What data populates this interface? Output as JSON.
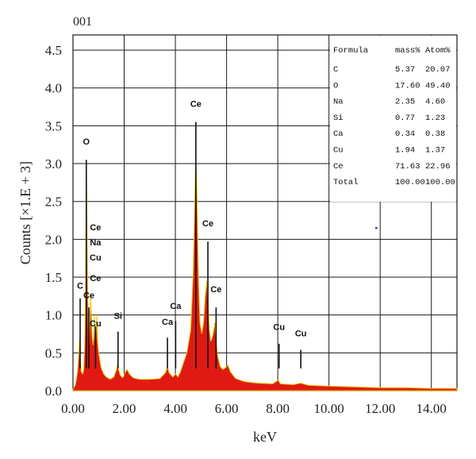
{
  "chart_data": {
    "type": "area",
    "corner_label": "001",
    "xlabel": "keV",
    "ylabel": "Counts [×1.E + 3]",
    "xlim": [
      0,
      15
    ],
    "ylim": [
      0,
      4.7
    ],
    "grid": true,
    "x_ticks": [
      0,
      2,
      4,
      6,
      8,
      10,
      12,
      14
    ],
    "x_tick_labels": [
      "0.00",
      "2.00",
      "4.00",
      "6.00",
      "8.00",
      "10.00",
      "12.00",
      "14.00"
    ],
    "y_ticks": [
      0,
      0.5,
      1,
      1.5,
      2,
      2.5,
      3,
      3.5,
      4,
      4.5
    ],
    "y_tick_labels": [
      "0.0",
      "0.5",
      "1.0",
      "1.5",
      "2.0",
      "2.5",
      "3.0",
      "3.5",
      "4.0",
      "4.5"
    ],
    "colors": {
      "spectrum": "#e01a12",
      "spectrum_edge": "#e8c400",
      "grid": "#1a1a1a"
    },
    "spectrum": [
      [
        0.0,
        0.02
      ],
      [
        0.1,
        0.08
      ],
      [
        0.18,
        0.25
      ],
      [
        0.22,
        0.45
      ],
      [
        0.26,
        0.7
      ],
      [
        0.28,
        0.45
      ],
      [
        0.32,
        0.25
      ],
      [
        0.38,
        0.22
      ],
      [
        0.42,
        0.28
      ],
      [
        0.46,
        0.6
      ],
      [
        0.5,
        1.4
      ],
      [
        0.52,
        2.9
      ],
      [
        0.54,
        2.55
      ],
      [
        0.57,
        1.4
      ],
      [
        0.6,
        0.85
      ],
      [
        0.63,
        0.6
      ],
      [
        0.66,
        0.9
      ],
      [
        0.69,
        1.25
      ],
      [
        0.72,
        0.95
      ],
      [
        0.75,
        0.7
      ],
      [
        0.78,
        0.6
      ],
      [
        0.81,
        0.7
      ],
      [
        0.84,
        1.0
      ],
      [
        0.87,
        0.6
      ],
      [
        0.9,
        0.72
      ],
      [
        0.93,
        1.0
      ],
      [
        0.96,
        0.65
      ],
      [
        1.0,
        0.5
      ],
      [
        1.05,
        0.4
      ],
      [
        1.1,
        0.3
      ],
      [
        1.2,
        0.22
      ],
      [
        1.3,
        0.18
      ],
      [
        1.45,
        0.15
      ],
      [
        1.6,
        0.18
      ],
      [
        1.7,
        0.28
      ],
      [
        1.74,
        0.35
      ],
      [
        1.78,
        0.28
      ],
      [
        1.85,
        0.2
      ],
      [
        1.95,
        0.17
      ],
      [
        2.05,
        0.25
      ],
      [
        2.12,
        0.28
      ],
      [
        2.2,
        0.22
      ],
      [
        2.35,
        0.17
      ],
      [
        2.6,
        0.15
      ],
      [
        3.0,
        0.15
      ],
      [
        3.4,
        0.16
      ],
      [
        3.62,
        0.24
      ],
      [
        3.69,
        0.32
      ],
      [
        3.75,
        0.24
      ],
      [
        3.9,
        0.18
      ],
      [
        4.01,
        0.22
      ],
      [
        4.1,
        0.18
      ],
      [
        4.2,
        0.25
      ],
      [
        4.3,
        0.35
      ],
      [
        4.45,
        0.5
      ],
      [
        4.6,
        0.8
      ],
      [
        4.7,
        1.6
      ],
      [
        4.76,
        2.6
      ],
      [
        4.8,
        3.08
      ],
      [
        4.84,
        2.6
      ],
      [
        4.9,
        1.5
      ],
      [
        4.96,
        0.9
      ],
      [
        5.03,
        0.75
      ],
      [
        5.1,
        0.9
      ],
      [
        5.17,
        1.25
      ],
      [
        5.22,
        1.45
      ],
      [
        5.27,
        1.2
      ],
      [
        5.33,
        0.8
      ],
      [
        5.38,
        0.65
      ],
      [
        5.44,
        0.7
      ],
      [
        5.49,
        0.78
      ],
      [
        5.54,
        0.9
      ],
      [
        5.59,
        0.65
      ],
      [
        5.66,
        0.45
      ],
      [
        5.75,
        0.32
      ],
      [
        5.85,
        0.28
      ],
      [
        5.95,
        0.3
      ],
      [
        6.05,
        0.34
      ],
      [
        6.15,
        0.25
      ],
      [
        6.35,
        0.16
      ],
      [
        6.7,
        0.12
      ],
      [
        7.2,
        0.1
      ],
      [
        7.8,
        0.09
      ],
      [
        8.02,
        0.14
      ],
      [
        8.1,
        0.09
      ],
      [
        8.6,
        0.08
      ],
      [
        8.9,
        0.1
      ],
      [
        9.2,
        0.07
      ],
      [
        10.0,
        0.06
      ],
      [
        11.0,
        0.05
      ],
      [
        12.0,
        0.04
      ],
      [
        13.0,
        0.04
      ],
      [
        14.0,
        0.03
      ],
      [
        15.0,
        0.03
      ]
    ],
    "peak_labels": [
      {
        "text": "O",
        "x": 0.52,
        "y": 3.25,
        "line": [
          3.05,
          0.0
        ]
      },
      {
        "text": "Ce",
        "x": 0.88,
        "y": 2.12
      },
      {
        "text": "Na",
        "x": 0.88,
        "y": 1.92
      },
      {
        "text": "Cu",
        "x": 0.88,
        "y": 1.72
      },
      {
        "text": "Ce",
        "x": 0.88,
        "y": 1.45
      },
      {
        "text": "C",
        "x": 0.28,
        "y": 1.35,
        "line": [
          1.22,
          0.0
        ]
      },
      {
        "text": "Ce",
        "x": 0.62,
        "y": 1.22,
        "line": [
          1.1,
          0.0
        ]
      },
      {
        "text": "Cu",
        "x": 0.88,
        "y": 0.85,
        "line": [
          0.85,
          0.0
        ]
      },
      {
        "text": "Si",
        "x": 1.76,
        "y": 0.95,
        "line": [
          0.78,
          0.0
        ]
      },
      {
        "text": "Ca",
        "x": 3.69,
        "y": 0.87,
        "line": [
          0.7,
          0.0
        ]
      },
      {
        "text": "Ca",
        "x": 4.01,
        "y": 1.08,
        "line": [
          0.92,
          0.0
        ]
      },
      {
        "text": "Ce",
        "x": 4.8,
        "y": 3.75,
        "line": [
          3.55,
          0.0
        ]
      },
      {
        "text": "Ce",
        "x": 5.27,
        "y": 2.17,
        "line": [
          1.97,
          0.0
        ]
      },
      {
        "text": "Ce",
        "x": 5.59,
        "y": 1.3,
        "line": [
          1.1,
          0.0
        ]
      },
      {
        "text": "Cu",
        "x": 8.05,
        "y": 0.8,
        "line": [
          0.62,
          0.0
        ]
      },
      {
        "text": "Cu",
        "x": 8.9,
        "y": 0.72,
        "line": [
          0.54,
          0.0
        ]
      }
    ],
    "table": {
      "headers": [
        "Formula",
        "mass%",
        "Atom%"
      ],
      "rows": [
        [
          "C",
          "5.37",
          "20.07"
        ],
        [
          "O",
          "17.60",
          "49.40"
        ],
        [
          "Na",
          "2.35",
          "4.60"
        ],
        [
          "Si",
          "0.77",
          "1.23"
        ],
        [
          "Ca",
          "0.34",
          "0.38"
        ],
        [
          "Cu",
          "1.94",
          "1.37"
        ],
        [
          "Ce",
          "71.63",
          "22.96"
        ],
        [
          "Total",
          "100.00",
          "100.00"
        ]
      ]
    }
  }
}
